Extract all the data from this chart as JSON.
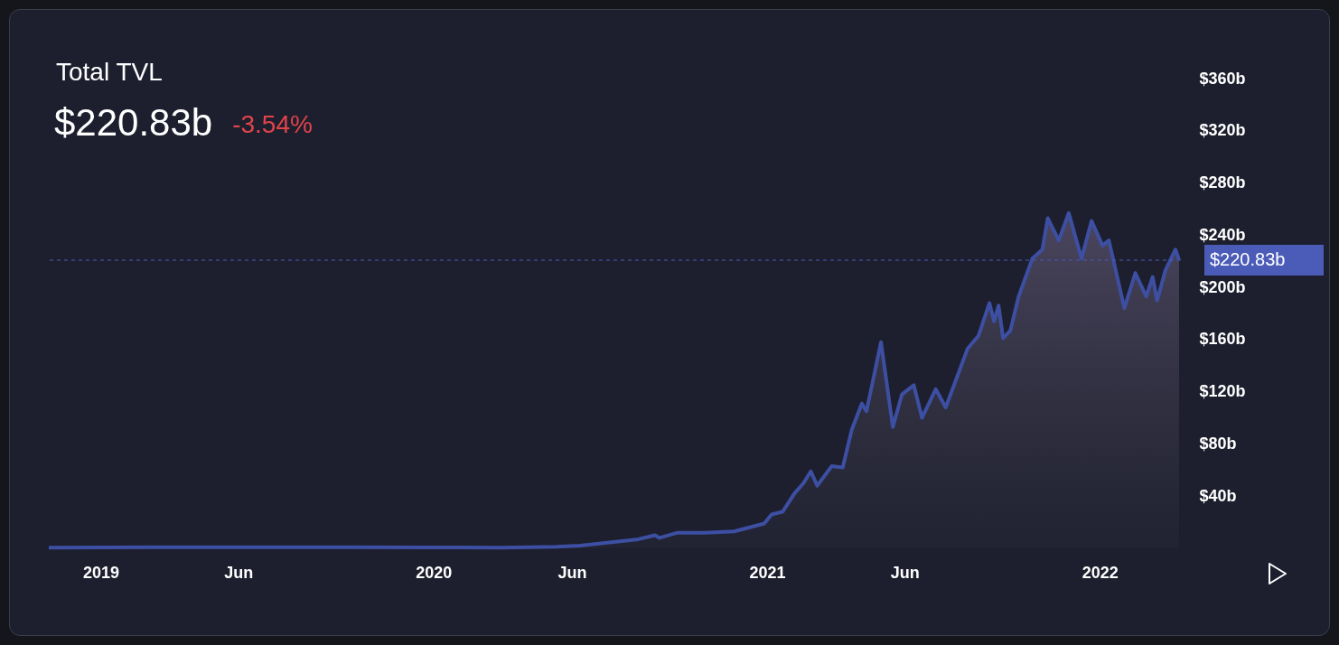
{
  "chart_data": {
    "type": "area",
    "title": "Total TVL",
    "subtitle": "$220.83b",
    "annotations": [
      "-3.54%"
    ],
    "series": [
      {
        "color": "#3d4fa3",
        "x": [
          "2018-11-05",
          "2019-03-01",
          "2019-06-01",
          "2019-10-01",
          "2020-01-01",
          "2020-03-15",
          "2020-05-15",
          "2020-06-10",
          "2020-08-13",
          "2020-08-31",
          "2020-09-05",
          "2020-09-25",
          "2020-10-25",
          "2020-11-26",
          "2020-12-29",
          "2021-01-06",
          "2021-01-18",
          "2021-01-31",
          "2021-02-10",
          "2021-02-18",
          "2021-02-25",
          "2021-03-13",
          "2021-03-25",
          "2021-04-04",
          "2021-04-15",
          "2021-04-20",
          "2021-04-27",
          "2021-05-06",
          "2021-05-19",
          "2021-05-29",
          "2021-06-11",
          "2021-06-20",
          "2021-07-05",
          "2021-07-16",
          "2021-08-09",
          "2021-08-21",
          "2021-09-02",
          "2021-09-07",
          "2021-09-12",
          "2021-09-17",
          "2021-09-25",
          "2021-10-04",
          "2021-10-19",
          "2021-10-30",
          "2021-11-05",
          "2021-11-17",
          "2021-11-28",
          "2021-12-12",
          "2021-12-23",
          "2022-01-04",
          "2022-01-11",
          "2022-01-28",
          "2022-02-09",
          "2022-02-21",
          "2022-02-28",
          "2022-03-05",
          "2022-03-14",
          "2022-03-25",
          "2022-03-29"
        ],
        "values": [
          0.6,
          0.8,
          0.9,
          0.8,
          0.7,
          0.6,
          1.2,
          2,
          7,
          10,
          8,
          12,
          12,
          13,
          19,
          26,
          28,
          42,
          50,
          59,
          48,
          63,
          62,
          91,
          111,
          105,
          128,
          158,
          93,
          118,
          125,
          100,
          122,
          108,
          153,
          163,
          188,
          174,
          186,
          161,
          167,
          193,
          222,
          229,
          253,
          236,
          257,
          222,
          251,
          232,
          236,
          184,
          211,
          193,
          208,
          190,
          213,
          229,
          221
        ]
      }
    ],
    "xlim": [
      "2018-11-05",
      "2022-03-31"
    ],
    "xticks": [
      {
        "value": "2019-01-01",
        "label": "2019"
      },
      {
        "value": "2019-06-01",
        "label": "Jun"
      },
      {
        "value": "2020-01-01",
        "label": "2020"
      },
      {
        "value": "2020-06-01",
        "label": "Jun"
      },
      {
        "value": "2021-01-01",
        "label": "2021"
      },
      {
        "value": "2021-06-01",
        "label": "Jun"
      },
      {
        "value": "2022-01-01",
        "label": "2022"
      }
    ],
    "ylim": [
      0,
      360
    ],
    "yticks": [
      {
        "value": 40,
        "label": "$40b"
      },
      {
        "value": 80,
        "label": "$80b"
      },
      {
        "value": 120,
        "label": "$120b"
      },
      {
        "value": 160,
        "label": "$160b"
      },
      {
        "value": 200,
        "label": "$200b"
      },
      {
        "value": 240,
        "label": "$240b"
      },
      {
        "value": 280,
        "label": "$280b"
      },
      {
        "value": 320,
        "label": "$320b"
      },
      {
        "value": 360,
        "label": "$360b"
      }
    ],
    "ref_lines": [
      {
        "axis": "y",
        "value": 220.83,
        "label": "$220.83b",
        "color": "#4b5cb8",
        "line_style": "dashed"
      }
    ],
    "grid": false
  }
}
